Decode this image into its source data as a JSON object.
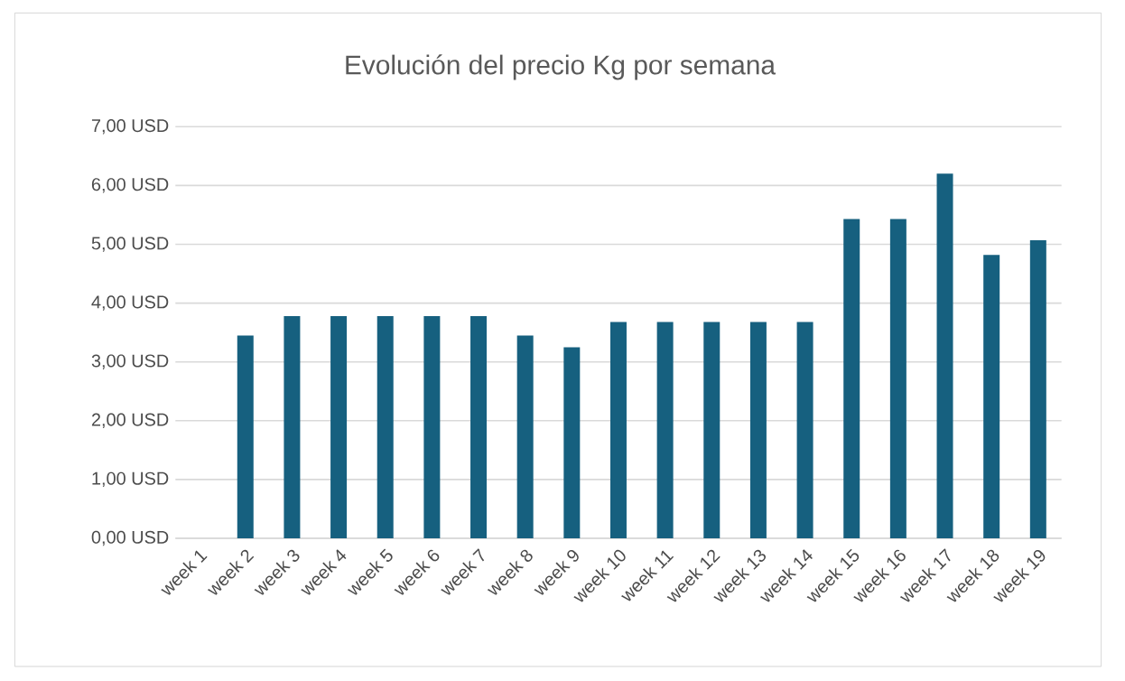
{
  "chart_data": {
    "type": "bar",
    "title": "Evolución del precio Kg por semana",
    "categories": [
      "week 1",
      "week 2",
      "week 3",
      "week 4",
      "week 5",
      "week 6",
      "week 7",
      "week 8",
      "week 9",
      "week 10",
      "week 11",
      "week 12",
      "week 13",
      "week 14",
      "week 15",
      "week 16",
      "week 17",
      "week 18",
      "week 19"
    ],
    "values": [
      null,
      3.45,
      3.78,
      3.78,
      3.78,
      3.78,
      3.78,
      3.45,
      3.25,
      3.68,
      3.68,
      3.68,
      3.68,
      3.68,
      5.43,
      5.43,
      6.2,
      4.82,
      5.07
    ],
    "color": "#16607f",
    "ylim": [
      0,
      7
    ],
    "yticks": [
      {
        "value": 0,
        "label": "0,00 USD"
      },
      {
        "value": 1,
        "label": "1,00 USD"
      },
      {
        "value": 2,
        "label": "2,00 USD"
      },
      {
        "value": 3,
        "label": "3,00 USD"
      },
      {
        "value": 4,
        "label": "4,00 USD"
      },
      {
        "value": 5,
        "label": "5,00 USD"
      },
      {
        "value": 6,
        "label": "6,00 USD"
      },
      {
        "value": 7,
        "label": "7,00 USD"
      }
    ],
    "grid": "y"
  }
}
